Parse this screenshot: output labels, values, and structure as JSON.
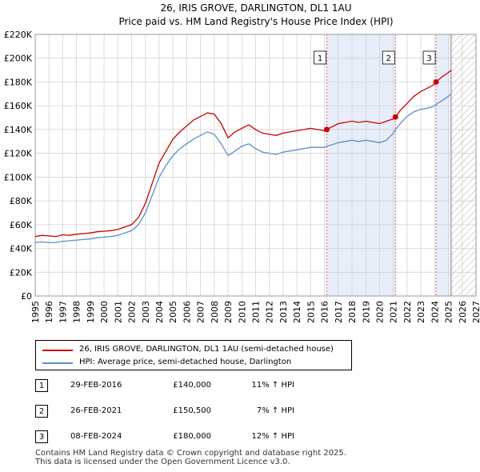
{
  "chart_data": {
    "type": "line",
    "title": "26, IRIS GROVE, DARLINGTON, DL1 1AU",
    "subtitle": "Price paid vs. HM Land Registry's House Price Index (HPI)",
    "xlim": [
      1995,
      2027
    ],
    "ylim": [
      0,
      220000
    ],
    "x_ticks": [
      "1995",
      "1996",
      "1997",
      "1998",
      "1999",
      "2000",
      "2001",
      "2002",
      "2003",
      "2004",
      "2005",
      "2006",
      "2007",
      "2008",
      "2009",
      "2010",
      "2011",
      "2012",
      "2013",
      "2014",
      "2015",
      "2016",
      "2017",
      "2018",
      "2019",
      "2020",
      "2021",
      "2022",
      "2023",
      "2024",
      "2025",
      "2026",
      "2027"
    ],
    "y_ticks": [
      {
        "value": 0,
        "label": "£0"
      },
      {
        "value": 20000,
        "label": "£20K"
      },
      {
        "value": 40000,
        "label": "£40K"
      },
      {
        "value": 60000,
        "label": "£60K"
      },
      {
        "value": 80000,
        "label": "£80K"
      },
      {
        "value": 100000,
        "label": "£100K"
      },
      {
        "value": 120000,
        "label": "£120K"
      },
      {
        "value": 140000,
        "label": "£140K"
      },
      {
        "value": 160000,
        "label": "£160K"
      },
      {
        "value": 180000,
        "label": "£180K"
      },
      {
        "value": 200000,
        "label": "£200K"
      },
      {
        "value": 220000,
        "label": "£220K"
      }
    ],
    "series": [
      {
        "name": "26, IRIS GROVE, DARLINGTON, DL1 1AU (semi-detached house)",
        "color": "#cc0000",
        "points": [
          [
            1995.0,
            50000
          ],
          [
            1995.5,
            51000
          ],
          [
            1996.0,
            50500
          ],
          [
            1996.5,
            50000
          ],
          [
            1997.0,
            51500
          ],
          [
            1997.5,
            51000
          ],
          [
            1998.0,
            52000
          ],
          [
            1998.5,
            52500
          ],
          [
            1999.0,
            53000
          ],
          [
            1999.5,
            54000
          ],
          [
            2000.0,
            54500
          ],
          [
            2000.5,
            55000
          ],
          [
            2001.0,
            56000
          ],
          [
            2001.5,
            58000
          ],
          [
            2002.0,
            60000
          ],
          [
            2002.5,
            66000
          ],
          [
            2003.0,
            78000
          ],
          [
            2003.5,
            95000
          ],
          [
            2004.0,
            112000
          ],
          [
            2004.5,
            122000
          ],
          [
            2005.0,
            132000
          ],
          [
            2005.5,
            138000
          ],
          [
            2006.0,
            143000
          ],
          [
            2006.5,
            148000
          ],
          [
            2007.0,
            151000
          ],
          [
            2007.5,
            154000
          ],
          [
            2008.0,
            153000
          ],
          [
            2008.5,
            145000
          ],
          [
            2009.0,
            133000
          ],
          [
            2009.5,
            138000
          ],
          [
            2010.0,
            141000
          ],
          [
            2010.5,
            144000
          ],
          [
            2011.0,
            140000
          ],
          [
            2011.5,
            137000
          ],
          [
            2012.0,
            136000
          ],
          [
            2012.5,
            135000
          ],
          [
            2013.0,
            137000
          ],
          [
            2013.5,
            138000
          ],
          [
            2014.0,
            139000
          ],
          [
            2014.5,
            140000
          ],
          [
            2015.0,
            141000
          ],
          [
            2015.5,
            140000
          ],
          [
            2016.0,
            139000
          ],
          [
            2016.17,
            140000
          ],
          [
            2016.5,
            142000
          ],
          [
            2017.0,
            145000
          ],
          [
            2017.5,
            146000
          ],
          [
            2018.0,
            147000
          ],
          [
            2018.5,
            146000
          ],
          [
            2019.0,
            147000
          ],
          [
            2019.5,
            146000
          ],
          [
            2020.0,
            145000
          ],
          [
            2020.5,
            147000
          ],
          [
            2021.0,
            149000
          ],
          [
            2021.15,
            150500
          ],
          [
            2021.5,
            156000
          ],
          [
            2022.0,
            162000
          ],
          [
            2022.5,
            168000
          ],
          [
            2023.0,
            172000
          ],
          [
            2023.5,
            175000
          ],
          [
            2024.0,
            178000
          ],
          [
            2024.1,
            180000
          ],
          [
            2024.5,
            184000
          ],
          [
            2025.0,
            188000
          ],
          [
            2025.2,
            190000
          ]
        ]
      },
      {
        "name": "HPI: Average price, semi-detached house, Darlington",
        "color": "#5b8fc9",
        "points": [
          [
            1995.0,
            45000
          ],
          [
            1995.5,
            45500
          ],
          [
            1996.0,
            45000
          ],
          [
            1996.5,
            45000
          ],
          [
            1997.0,
            46000
          ],
          [
            1997.5,
            46500
          ],
          [
            1998.0,
            47000
          ],
          [
            1998.5,
            47500
          ],
          [
            1999.0,
            48000
          ],
          [
            1999.5,
            49000
          ],
          [
            2000.0,
            49500
          ],
          [
            2000.5,
            50000
          ],
          [
            2001.0,
            51000
          ],
          [
            2001.5,
            53000
          ],
          [
            2002.0,
            55000
          ],
          [
            2002.5,
            60000
          ],
          [
            2003.0,
            70000
          ],
          [
            2003.5,
            85000
          ],
          [
            2004.0,
            100000
          ],
          [
            2004.5,
            110000
          ],
          [
            2005.0,
            118000
          ],
          [
            2005.5,
            124000
          ],
          [
            2006.0,
            128000
          ],
          [
            2006.5,
            132000
          ],
          [
            2007.0,
            135000
          ],
          [
            2007.5,
            138000
          ],
          [
            2008.0,
            136000
          ],
          [
            2008.5,
            128000
          ],
          [
            2009.0,
            118000
          ],
          [
            2009.5,
            122000
          ],
          [
            2010.0,
            126000
          ],
          [
            2010.5,
            128000
          ],
          [
            2011.0,
            124000
          ],
          [
            2011.5,
            121000
          ],
          [
            2012.0,
            120000
          ],
          [
            2012.5,
            119000
          ],
          [
            2013.0,
            121000
          ],
          [
            2013.5,
            122000
          ],
          [
            2014.0,
            123000
          ],
          [
            2014.5,
            124000
          ],
          [
            2015.0,
            125000
          ],
          [
            2015.5,
            125000
          ],
          [
            2016.0,
            125000
          ],
          [
            2016.17,
            126000
          ],
          [
            2016.5,
            127000
          ],
          [
            2017.0,
            129000
          ],
          [
            2017.5,
            130000
          ],
          [
            2018.0,
            131000
          ],
          [
            2018.5,
            130000
          ],
          [
            2019.0,
            131000
          ],
          [
            2019.5,
            130000
          ],
          [
            2020.0,
            129000
          ],
          [
            2020.5,
            131000
          ],
          [
            2021.0,
            137000
          ],
          [
            2021.15,
            140000
          ],
          [
            2021.5,
            145000
          ],
          [
            2022.0,
            151000
          ],
          [
            2022.5,
            155000
          ],
          [
            2023.0,
            157000
          ],
          [
            2023.5,
            158000
          ],
          [
            2024.0,
            160000
          ],
          [
            2024.1,
            161000
          ],
          [
            2024.5,
            164000
          ],
          [
            2025.0,
            168000
          ],
          [
            2025.2,
            170000
          ]
        ]
      }
    ],
    "sales": [
      {
        "label": "1",
        "x": 2016.17,
        "price": 140000
      },
      {
        "label": "2",
        "x": 2021.15,
        "price": 150500
      },
      {
        "label": "3",
        "x": 2024.1,
        "price": 180000
      }
    ],
    "forecast_from": 2025.2,
    "colors": {
      "price_line": "#cc0000",
      "hpi_line": "#5b8fc9",
      "grid": "#cccccc",
      "highlight": "#e8eef9",
      "marker_line": "#dd6677",
      "hatch": "#999999"
    }
  },
  "legend": {
    "price_label": "26, IRIS GROVE, DARLINGTON, DL1 1AU (semi-detached house)",
    "hpi_label": "HPI: Average price, semi-detached house, Darlington"
  },
  "transactions": [
    {
      "num": "1",
      "date": "29-FEB-2016",
      "price": "£140,000",
      "hpi": "11% ↑ HPI"
    },
    {
      "num": "2",
      "date": "26-FEB-2021",
      "price": "£150,500",
      "hpi": "7% ↑ HPI"
    },
    {
      "num": "3",
      "date": "08-FEB-2024",
      "price": "£180,000",
      "hpi": "12% ↑ HPI"
    }
  ],
  "footer": {
    "line1": "Contains HM Land Registry data © Crown copyright and database right 2025.",
    "line2": "This data is licensed under the Open Government Licence v3.0."
  }
}
